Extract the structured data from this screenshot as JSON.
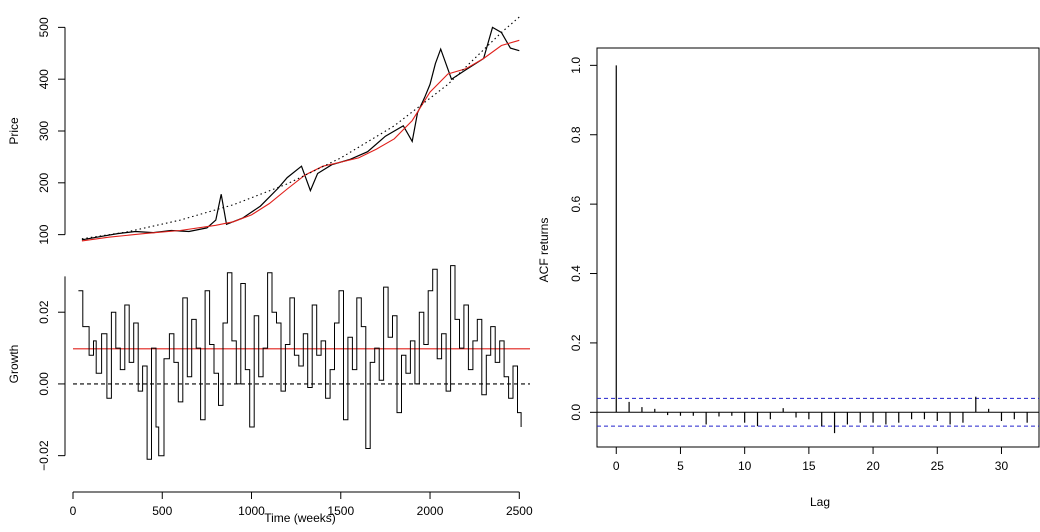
{
  "chart_data": [
    {
      "type": "line",
      "panel": "price",
      "ylabel": "Price",
      "xlabel": "",
      "xlim": [
        0,
        2560
      ],
      "ylim": [
        80,
        520
      ],
      "yticks": [
        100,
        200,
        300,
        400,
        500
      ],
      "series": [
        {
          "role": "observed",
          "color": "#000000",
          "x": [
            50,
            150,
            250,
            350,
            450,
            550,
            650,
            750,
            800,
            830,
            860,
            950,
            1050,
            1150,
            1200,
            1280,
            1330,
            1370,
            1450,
            1550,
            1650,
            1750,
            1850,
            1900,
            1930,
            1970,
            2000,
            2030,
            2060,
            2120,
            2200,
            2300,
            2350,
            2400,
            2450,
            2500
          ],
          "y": [
            90,
            96,
            102,
            106,
            104,
            108,
            106,
            113,
            128,
            178,
            120,
            132,
            155,
            190,
            210,
            232,
            185,
            218,
            235,
            245,
            260,
            290,
            310,
            280,
            335,
            365,
            390,
            430,
            458,
            400,
            418,
            440,
            500,
            490,
            460,
            455
          ]
        },
        {
          "role": "smoothed",
          "color": "#e0201b",
          "x": [
            50,
            200,
            400,
            600,
            800,
            900,
            1000,
            1100,
            1200,
            1300,
            1400,
            1500,
            1600,
            1700,
            1800,
            1900,
            2000,
            2100,
            2200,
            2300,
            2400,
            2500
          ],
          "y": [
            88,
            95,
            102,
            108,
            118,
            125,
            138,
            160,
            188,
            215,
            232,
            240,
            248,
            265,
            285,
            320,
            375,
            410,
            420,
            440,
            465,
            475
          ]
        },
        {
          "role": "trend",
          "color": "#000000",
          "dash": "dotted",
          "x": [
            50,
            300,
            600,
            900,
            1200,
            1500,
            1800,
            2100,
            2400,
            2500
          ],
          "y": [
            92,
            105,
            128,
            158,
            198,
            248,
            310,
            390,
            490,
            520
          ]
        }
      ]
    },
    {
      "type": "line",
      "panel": "growth",
      "ylabel": "Growth",
      "xlabel": "Time (weeks)",
      "xlim": [
        0,
        2560
      ],
      "ylim": [
        -0.024,
        0.034
      ],
      "yticks": [
        -0.02,
        0.0,
        0.02
      ],
      "ytick_labels": [
        "−0.02",
        "0.00",
        "0.02"
      ],
      "xticks": [
        0,
        500,
        1000,
        1500,
        2000,
        2500
      ],
      "hlines": [
        {
          "y": 0.0098,
          "color": "#e0201b",
          "dash": "solid"
        },
        {
          "y": 0.0,
          "color": "#000000",
          "dash": "dashed"
        }
      ],
      "series": [
        {
          "role": "growth",
          "color": "#000000",
          "x": [
            30,
            55,
            90,
            115,
            130,
            160,
            190,
            215,
            240,
            265,
            290,
            315,
            340,
            365,
            390,
            415,
            440,
            465,
            480,
            510,
            540,
            565,
            590,
            615,
            640,
            665,
            690,
            715,
            740,
            765,
            790,
            815,
            840,
            865,
            890,
            915,
            940,
            965,
            990,
            1015,
            1040,
            1065,
            1090,
            1115,
            1140,
            1165,
            1190,
            1215,
            1240,
            1265,
            1290,
            1315,
            1340,
            1365,
            1390,
            1415,
            1440,
            1465,
            1490,
            1515,
            1540,
            1565,
            1590,
            1615,
            1640,
            1665,
            1690,
            1715,
            1740,
            1765,
            1790,
            1815,
            1840,
            1865,
            1890,
            1915,
            1940,
            1965,
            1990,
            2015,
            2040,
            2065,
            2090,
            2115,
            2140,
            2165,
            2190,
            2215,
            2240,
            2265,
            2290,
            2315,
            2340,
            2365,
            2390,
            2415,
            2440,
            2465,
            2490,
            2510
          ],
          "y": [
            0.026,
            0.016,
            0.008,
            0.012,
            0.003,
            0.014,
            -0.004,
            0.02,
            0.01,
            0.004,
            0.022,
            0.006,
            0.017,
            -0.002,
            0.005,
            -0.021,
            0.01,
            -0.012,
            -0.02,
            0.007,
            0.014,
            0.006,
            -0.005,
            0.024,
            0.002,
            0.018,
            0.01,
            -0.01,
            0.026,
            0.011,
            0.003,
            -0.006,
            0.017,
            0.031,
            0.012,
            0.0,
            0.028,
            0.004,
            -0.012,
            0.019,
            0.002,
            0.01,
            0.031,
            0.02,
            0.017,
            -0.002,
            0.011,
            0.024,
            0.008,
            0.005,
            0.014,
            -0.001,
            0.022,
            0.008,
            0.012,
            -0.004,
            0.004,
            0.017,
            0.026,
            -0.01,
            0.013,
            0.004,
            0.024,
            0.016,
            -0.018,
            0.006,
            0.01,
            0.001,
            0.027,
            0.013,
            0.019,
            -0.008,
            0.008,
            0.003,
            0.012,
            0.0,
            0.02,
            0.011,
            0.026,
            0.032,
            0.007,
            0.014,
            -0.002,
            0.033,
            0.018,
            0.01,
            0.022,
            0.004,
            0.012,
            0.018,
            -0.003,
            0.008,
            0.016,
            0.006,
            0.012,
            0.002,
            -0.004,
            0.005,
            -0.008,
            -0.012
          ]
        }
      ]
    },
    {
      "type": "bar",
      "panel": "acf",
      "xlabel": "Lag",
      "ylabel": "ACF returns",
      "xlim": [
        -1.5,
        33
      ],
      "ylim": [
        -0.1,
        1.05
      ],
      "xticks": [
        0,
        5,
        10,
        15,
        20,
        25,
        30
      ],
      "yticks": [
        0.0,
        0.2,
        0.4,
        0.6,
        0.8,
        1.0
      ],
      "confidence_band": 0.04,
      "band_color": "#2222cc",
      "lags": [
        0,
        1,
        2,
        3,
        4,
        5,
        6,
        7,
        8,
        9,
        10,
        11,
        12,
        13,
        14,
        15,
        16,
        17,
        18,
        19,
        20,
        21,
        22,
        23,
        24,
        25,
        26,
        27,
        28,
        29,
        30,
        31,
        32
      ],
      "values": [
        1.0,
        0.03,
        0.015,
        0.01,
        -0.008,
        -0.01,
        -0.01,
        -0.035,
        -0.012,
        -0.01,
        -0.03,
        -0.04,
        -0.02,
        0.012,
        -0.015,
        -0.02,
        -0.04,
        -0.06,
        -0.035,
        -0.03,
        -0.03,
        -0.035,
        -0.03,
        -0.02,
        -0.02,
        -0.025,
        -0.035,
        -0.03,
        0.045,
        0.01,
        -0.025,
        -0.02,
        -0.03
      ]
    }
  ]
}
